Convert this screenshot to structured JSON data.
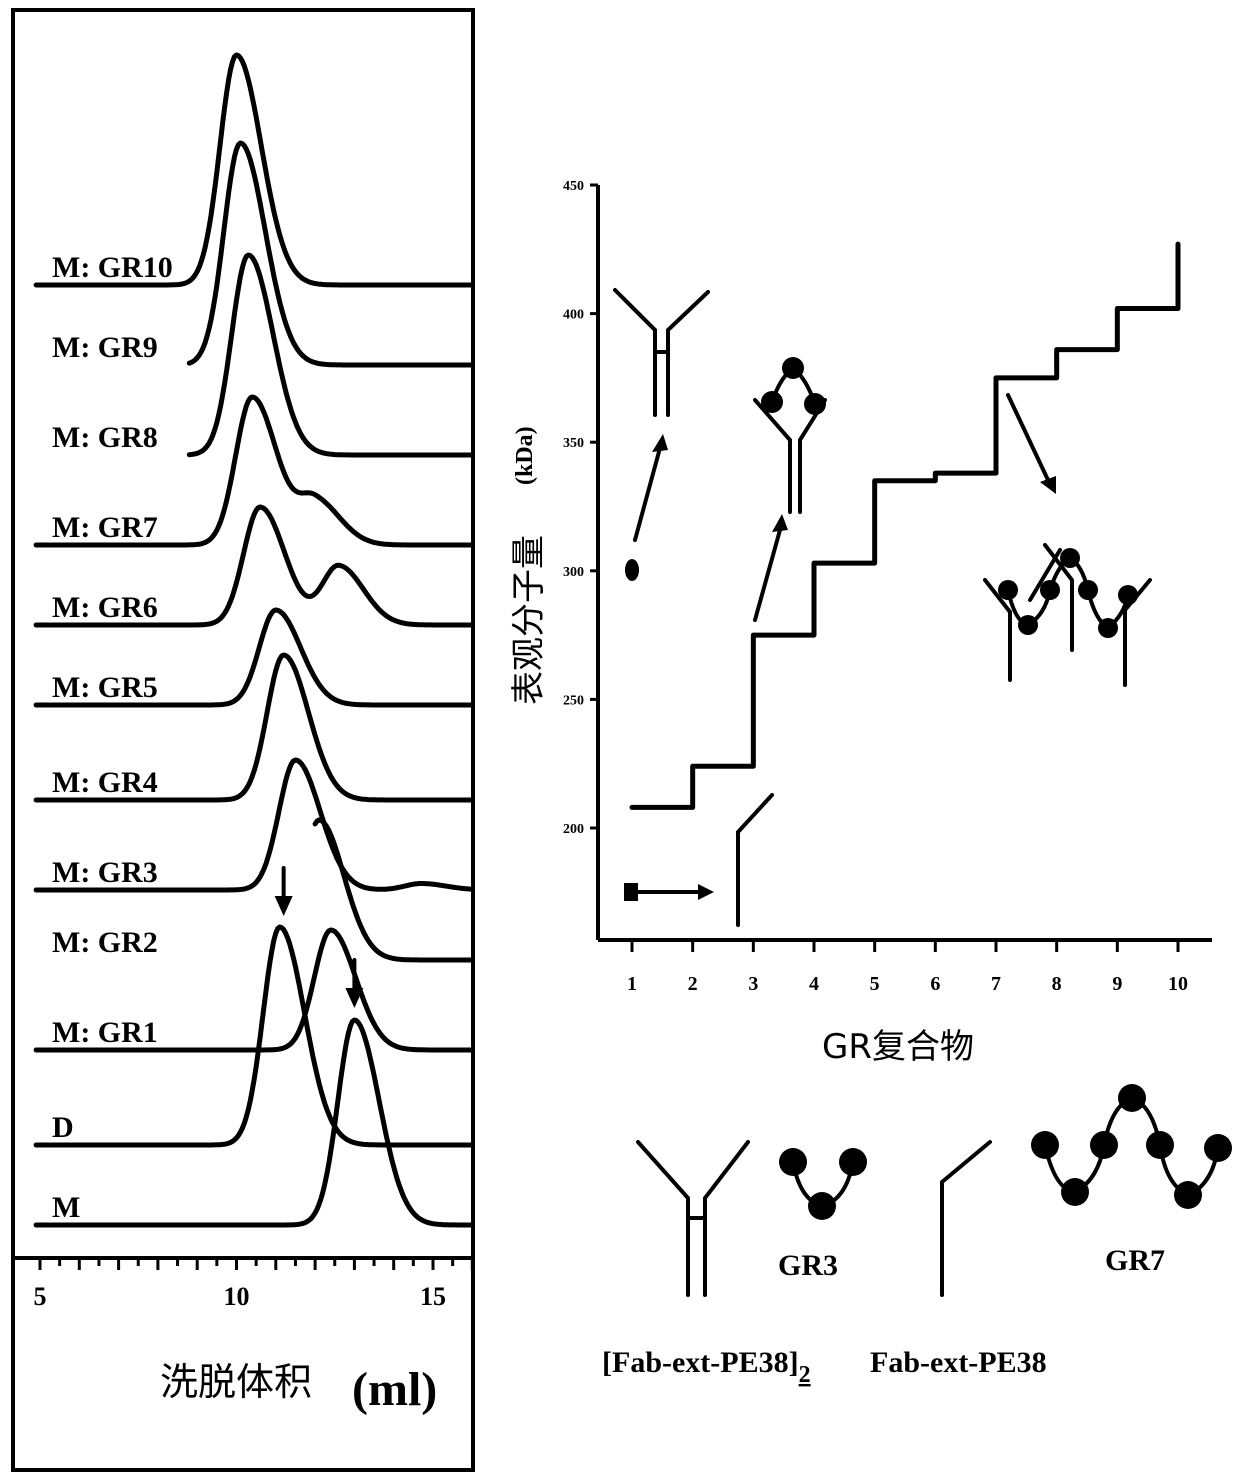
{
  "chart_data": [
    {
      "type": "line",
      "panel": "left",
      "xlabel": "洗脱体积",
      "xunit": "(ml)",
      "xlim": [
        4.9,
        16.0
      ],
      "xticks": [
        5,
        10,
        15
      ],
      "xtick_labels": [
        "5",
        "10",
        "15"
      ],
      "series": [
        {
          "name": "M: GR10",
          "peaks": [
            {
              "x": 10.0,
              "h": 1.0
            }
          ]
        },
        {
          "name": "M: GR9",
          "peaks": [
            {
              "x": 10.1,
              "h": 1.0
            }
          ]
        },
        {
          "name": "M: GR8",
          "peaks": [
            {
              "x": 10.3,
              "h": 1.0
            }
          ]
        },
        {
          "name": "M: GR7",
          "peaks": [
            {
              "x": 10.4,
              "h": 1.0
            },
            {
              "x": 12.0,
              "h": 0.3
            }
          ]
        },
        {
          "name": "M: GR6",
          "peaks": [
            {
              "x": 10.6,
              "h": 1.0
            },
            {
              "x": 12.6,
              "h": 0.5
            }
          ]
        },
        {
          "name": "M: GR5",
          "peaks": [
            {
              "x": 11.0,
              "h": 1.0
            }
          ]
        },
        {
          "name": "M: GR4",
          "peaks": [
            {
              "x": 11.2,
              "h": 1.0
            }
          ]
        },
        {
          "name": "M: GR3",
          "peaks": [
            {
              "x": 11.5,
              "h": 1.0
            },
            {
              "x": 14.7,
              "h": 0.05
            }
          ]
        },
        {
          "name": "M: GR2",
          "peaks": [
            {
              "x": 12.1,
              "h": 1.0
            }
          ]
        },
        {
          "name": "M: GR1",
          "peaks": [
            {
              "x": 12.4,
              "h": 1.0
            }
          ]
        },
        {
          "name": "D",
          "peaks": [
            {
              "x": 11.1,
              "h": 1.0
            }
          ]
        },
        {
          "name": "M",
          "peaks": [
            {
              "x": 13.0,
              "h": 1.0
            }
          ]
        }
      ],
      "arrows": [
        {
          "x": 11.2
        },
        {
          "x": 13.0
        }
      ]
    },
    {
      "type": "line",
      "panel": "right",
      "xlabel": "GR复合物",
      "ylabel": "表观分子量",
      "yunit": "(kDa)",
      "xlim": [
        0.55,
        10.6
      ],
      "ylim": [
        155,
        455
      ],
      "xticks": [
        1,
        2,
        3,
        4,
        5,
        6,
        7,
        8,
        9,
        10
      ],
      "xtick_labels": [
        "1",
        "2",
        "3",
        "4",
        "5",
        "6",
        "7",
        "8",
        "9",
        "10"
      ],
      "yticks": [
        200,
        250,
        300,
        350,
        400,
        450
      ],
      "ytick_labels": [
        "200",
        "250",
        "300",
        "350",
        "400",
        "450"
      ],
      "step": {
        "x": [
          1,
          2,
          3,
          4,
          5,
          6,
          7,
          8,
          9,
          10
        ],
        "y": [
          208,
          224,
          275,
          303,
          335,
          338,
          375,
          386,
          402,
          415
        ]
      }
    }
  ],
  "right_labels": {
    "gr3": "GR3",
    "gr7": "GR7",
    "fab_dimer": "[Fab-ext-PE38]",
    "fab_dimer_sub": "2",
    "fab": "Fab-ext-PE38"
  }
}
